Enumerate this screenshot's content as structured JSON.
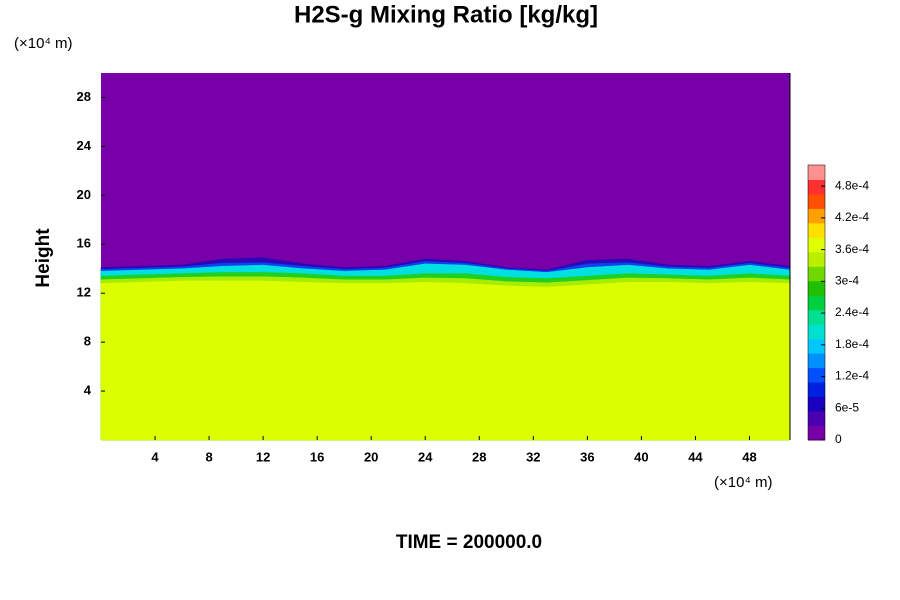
{
  "chart_data": {
    "type": "contour",
    "title": "H2S-g Mixing Ratio [kg/kg]",
    "y_label": "Height",
    "y_unit": "(×10⁴ m)",
    "x_unit": "(×10⁴ m)",
    "footer": "TIME = 200000.0",
    "xlim": [
      0,
      51
    ],
    "ylim": [
      0,
      30
    ],
    "xticks": [
      4,
      8,
      12,
      16,
      20,
      24,
      28,
      32,
      36,
      40,
      44,
      48
    ],
    "yticks": [
      4,
      8,
      12,
      16,
      20,
      24,
      28
    ],
    "background": {
      "level": 0,
      "color": "#7800a8"
    },
    "x": [
      0,
      3,
      6,
      9,
      12,
      15,
      18,
      21,
      24,
      27,
      30,
      33,
      36,
      39,
      42,
      45,
      48,
      51
    ],
    "contours": [
      {
        "level": 3e-05,
        "color": "#2a08b8",
        "heights": [
          14.1,
          14.2,
          14.3,
          14.8,
          14.9,
          14.4,
          14.1,
          14.2,
          14.8,
          14.6,
          14.1,
          13.9,
          14.7,
          14.8,
          14.3,
          14.2,
          14.6,
          14.2
        ]
      },
      {
        "level": 9e-05,
        "color": "#1040f0",
        "heights": [
          13.95,
          14.05,
          14.15,
          14.45,
          14.5,
          14.2,
          13.95,
          14.05,
          14.6,
          14.45,
          14.0,
          13.8,
          14.4,
          14.5,
          14.15,
          14.05,
          14.45,
          14.05
        ]
      },
      {
        "level": 0.00018,
        "color": "#00e0e0",
        "heights": [
          13.8,
          13.9,
          14.0,
          14.2,
          14.3,
          14.0,
          13.8,
          13.9,
          14.4,
          14.3,
          13.9,
          13.7,
          14.1,
          14.3,
          14.0,
          13.9,
          14.3,
          13.9
        ]
      },
      {
        "level": 0.00027,
        "color": "#20d020",
        "heights": [
          13.4,
          13.5,
          13.6,
          13.7,
          13.7,
          13.6,
          13.4,
          13.4,
          13.6,
          13.6,
          13.3,
          13.2,
          13.4,
          13.6,
          13.5,
          13.4,
          13.6,
          13.4
        ]
      },
      {
        "level": 0.0003,
        "color": "#a8ec00",
        "heights": [
          13.1,
          13.2,
          13.3,
          13.35,
          13.35,
          13.25,
          13.1,
          13.1,
          13.25,
          13.2,
          12.95,
          12.85,
          13.05,
          13.25,
          13.2,
          13.1,
          13.25,
          13.1
        ]
      },
      {
        "level": 0.00033,
        "color": "#dcff00",
        "heights": [
          12.8,
          12.9,
          13.0,
          13.0,
          13.0,
          12.9,
          12.8,
          12.8,
          12.9,
          12.8,
          12.6,
          12.5,
          12.7,
          12.9,
          12.9,
          12.8,
          12.9,
          12.8
        ]
      }
    ],
    "colorbar": {
      "lim": [
        0,
        0.00052
      ],
      "colors": [
        "#7800a8",
        "#4a00b0",
        "#1a00c0",
        "#0020e0",
        "#0050ff",
        "#0090ff",
        "#00c8ff",
        "#00e0d0",
        "#00e090",
        "#00d040",
        "#20c000",
        "#70d800",
        "#b8f000",
        "#e0ff00",
        "#ffe000",
        "#ffa000",
        "#ff5000",
        "#ff3030",
        "#ff9090"
      ],
      "ticks": [
        0,
        {
          "value": 6e-05,
          "label": "6e-5"
        },
        {
          "value": 0.00012,
          "label": "1.2e-4"
        },
        {
          "value": 0.00018,
          "label": "1.8e-4"
        },
        {
          "value": 0.00024,
          "label": "2.4e-4"
        },
        {
          "value": 0.0003,
          "label": "3e-4"
        },
        {
          "value": 0.00036,
          "label": "3.6e-4"
        },
        {
          "value": 0.00042,
          "label": "4.2e-4"
        },
        {
          "value": 0.00048,
          "label": "4.8e-4"
        }
      ]
    }
  }
}
